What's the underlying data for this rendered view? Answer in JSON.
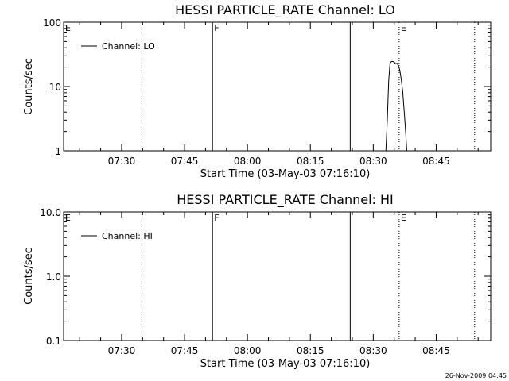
{
  "chart_data": [
    {
      "type": "line",
      "title": "HESSI PARTICLE_RATE Channel: LO",
      "xlabel": "Start Time (03-May-03 07:16:10)",
      "ylabel": "Counts/sec",
      "y_scale": "log",
      "ylim": [
        1,
        100
      ],
      "xlim": [
        "07:16:10",
        "08:58:00"
      ],
      "x_ticks": [
        "07:30",
        "07:45",
        "08:00",
        "08:15",
        "08:30",
        "08:45"
      ],
      "y_ticks": [
        "1",
        "10",
        "100"
      ],
      "legend": {
        "placement": "top-left",
        "entries": [
          "Channel: LO"
        ]
      },
      "series": [
        {
          "name": "Channel: LO",
          "x": [
            "08:33:00",
            "08:33:20",
            "08:33:40",
            "08:34:00",
            "08:34:20",
            "08:34:40",
            "08:35:00",
            "08:35:20",
            "08:35:40",
            "08:36:00",
            "08:36:20",
            "08:36:40",
            "08:37:00",
            "08:37:20",
            "08:37:40",
            "08:38:00"
          ],
          "values": [
            1.0,
            2.8,
            12,
            23,
            24.5,
            24.5,
            24,
            22.5,
            23,
            21,
            18,
            13,
            8.5,
            4.5,
            2.2,
            1.0
          ]
        }
      ],
      "markers": [
        {
          "time": "07:16:10",
          "style": "dotted",
          "flag": "E"
        },
        {
          "time": "07:34:50",
          "style": "dotted",
          "flag": ""
        },
        {
          "time": "07:51:40",
          "style": "solid",
          "flag": "F"
        },
        {
          "time": "08:24:30",
          "style": "solid",
          "flag": ""
        },
        {
          "time": "08:36:10",
          "style": "dotted",
          "flag": "E"
        },
        {
          "time": "08:54:10",
          "style": "dotted",
          "flag": ""
        }
      ]
    },
    {
      "type": "line",
      "title": "HESSI PARTICLE_RATE Channel: HI",
      "xlabel": "Start Time (03-May-03 07:16:10)",
      "ylabel": "Counts/sec",
      "y_scale": "log",
      "ylim": [
        0.1,
        10
      ],
      "xlim": [
        "07:16:10",
        "08:58:00"
      ],
      "x_ticks": [
        "07:30",
        "07:45",
        "08:00",
        "08:15",
        "08:30",
        "08:45"
      ],
      "y_ticks": [
        "0.1",
        "1.0",
        "10.0"
      ],
      "legend": {
        "placement": "top-left",
        "entries": [
          "Channel: HI"
        ]
      },
      "series": [
        {
          "name": "Channel: HI",
          "x": [],
          "values": []
        }
      ],
      "markers": [
        {
          "time": "07:16:10",
          "style": "dotted",
          "flag": "E"
        },
        {
          "time": "07:34:50",
          "style": "dotted",
          "flag": ""
        },
        {
          "time": "07:51:40",
          "style": "solid",
          "flag": "F"
        },
        {
          "time": "08:24:30",
          "style": "solid",
          "flag": ""
        },
        {
          "time": "08:36:10",
          "style": "dotted",
          "flag": "E"
        },
        {
          "time": "08:54:10",
          "style": "dotted",
          "flag": ""
        }
      ]
    }
  ],
  "footer": {
    "timestamp": "26-Nov-2009 04:45"
  }
}
